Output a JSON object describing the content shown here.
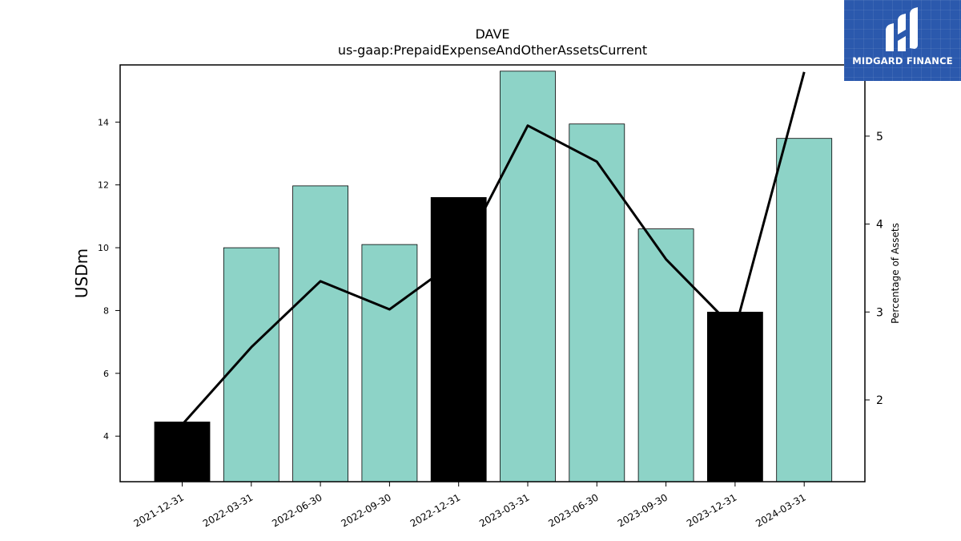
{
  "chart_data": {
    "type": "bar",
    "title": "DAVE",
    "subtitle": "us-gaap:PrepaidExpenseAndOtherAssetsCurrent",
    "categories": [
      "2021-12-31",
      "2022-03-31",
      "2022-06-30",
      "2022-09-30",
      "2022-12-31",
      "2023-03-31",
      "2023-06-30",
      "2023-09-30",
      "2023-12-31",
      "2024-03-31"
    ],
    "series": [
      {
        "kind": "bar",
        "axis": "left",
        "values": [
          4.45,
          10.0,
          11.97,
          10.1,
          11.6,
          15.62,
          13.94,
          10.6,
          7.95,
          13.48
        ],
        "bar_colors": [
          "#000000",
          "#8dd3c7",
          "#8dd3c7",
          "#8dd3c7",
          "#000000",
          "#8dd3c7",
          "#8dd3c7",
          "#8dd3c7",
          "#000000",
          "#8dd3c7"
        ]
      },
      {
        "kind": "line",
        "axis": "right",
        "color": "#000000",
        "values": [
          1.72,
          2.6,
          3.35,
          3.03,
          3.6,
          5.12,
          4.71,
          3.6,
          2.8,
          5.73
        ]
      }
    ],
    "ylabel": "USDm",
    "ylabel_right": "Percentage of Assets",
    "ylim": [
      2.55,
      15.82
    ],
    "ylim_right": [
      1.07,
      5.81
    ],
    "yticks": [
      4,
      6,
      8,
      10,
      12,
      14
    ],
    "yticks_right": [
      2,
      3,
      4,
      5
    ],
    "grid": false,
    "legend": "none"
  },
  "logo": {
    "text": "MIDGARD FINANCE",
    "background": "#2b59ad"
  }
}
